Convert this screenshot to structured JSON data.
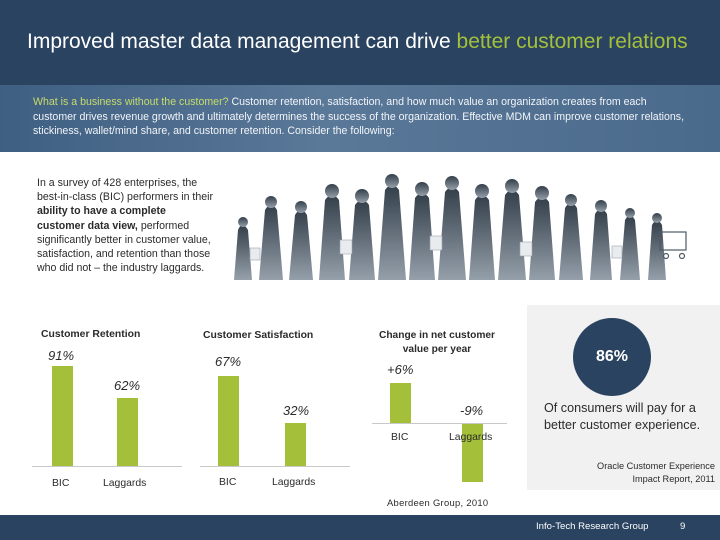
{
  "header": {
    "title_main": "Improved master data management can drive ",
    "title_accent": "better customer relations",
    "accent_color": "#a4c03a",
    "band_color": "#2a4360"
  },
  "intro": {
    "lead": "What is a business without the customer?",
    "body": " Customer retention, satisfaction, and how much value an organization creates from each customer drives revenue growth and ultimately determines the success of the organization. Effective MDM can improve customer relations, stickiness, wallet/mind share, and customer retention. Consider the following:"
  },
  "survey": {
    "part1": "In a survey of 428 enterprises, the best-in-class (BIC) performers in their ",
    "bold": "ability to have a complete customer data view,",
    "part2": " performed significantly better in customer value, satisfaction, and retention than those who did not – the industry laggards."
  },
  "charts": {
    "retention": {
      "title": "Customer Retention",
      "bic_label": "91%",
      "laggards_label": "62%",
      "bic_cat": "BIC",
      "laggards_cat": "Laggards"
    },
    "satisfaction": {
      "title": "Customer Satisfaction",
      "bic_label": "67%",
      "laggards_label": "32%",
      "bic_cat": "BIC",
      "laggards_cat": "Laggards"
    },
    "net_value": {
      "title": "Change in net customer value per year",
      "bic_label": "+6%",
      "laggards_label": "-9%",
      "bic_cat": "BIC",
      "laggards_cat": "Laggards"
    }
  },
  "chart_data": [
    {
      "type": "bar",
      "title": "Customer Retention",
      "categories": [
        "BIC",
        "Laggards"
      ],
      "values": [
        91,
        62
      ],
      "unit": "%"
    },
    {
      "type": "bar",
      "title": "Customer Satisfaction",
      "categories": [
        "BIC",
        "Laggards"
      ],
      "values": [
        67,
        32
      ],
      "unit": "%"
    },
    {
      "type": "bar",
      "title": "Change in net customer value per year",
      "categories": [
        "BIC",
        "Laggards"
      ],
      "values": [
        6,
        -9
      ],
      "unit": "%"
    }
  ],
  "stat": {
    "value": "86%",
    "text": "Of consumers will pay for a better customer experience.",
    "source": "Oracle Customer Experience Impact Report, 2011"
  },
  "source": "Aberdeen Group, 2010",
  "footer": {
    "org": "Info-Tech Research Group",
    "page": "9"
  },
  "icons": {
    "crowd": "shopping-crowd-illustration"
  }
}
